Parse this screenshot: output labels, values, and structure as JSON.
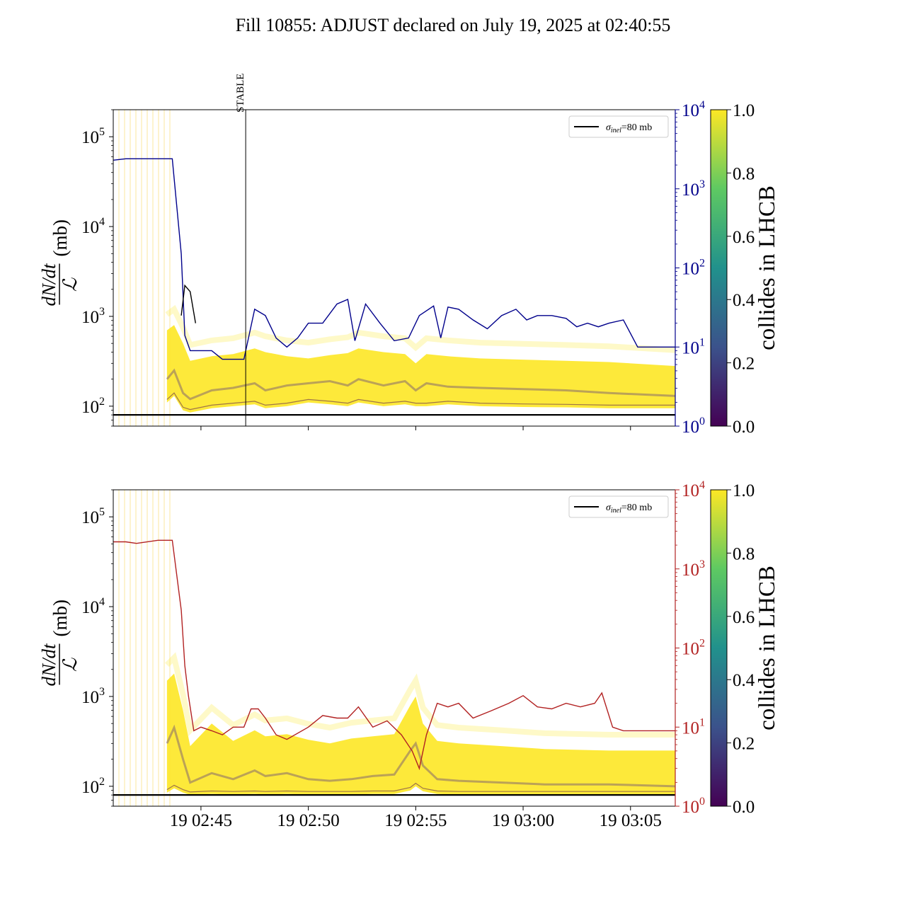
{
  "title": "Fill 10855: ADJUST declared on July 19, 2025 at 02:40:55",
  "colors": {
    "top_line": "#00008b",
    "bottom_line": "#b22222",
    "reference": "#000000",
    "viridis_low": "#440154",
    "viridis_high": "#fde725"
  },
  "chart_data": [
    {
      "type": "line",
      "panel": "top",
      "ylabel": "dN/dt / L (mb)",
      "ylabel_parts": {
        "numerator": "dN/dt",
        "denominator": "ℒ",
        "unit": "(mb)"
      },
      "yscale": "log",
      "ylim": [
        60,
        200000
      ],
      "y_ticks": [
        {
          "base": "10",
          "exp": "2"
        },
        {
          "base": "10",
          "exp": "3"
        },
        {
          "base": "10",
          "exp": "4"
        },
        {
          "base": "10",
          "exp": "5"
        }
      ],
      "y2_scale": "log",
      "y2_lim": [
        1,
        10000
      ],
      "y2_ticks": [
        {
          "base": "10",
          "exp": "0"
        },
        {
          "base": "10",
          "exp": "1"
        },
        {
          "base": "10",
          "exp": "2"
        },
        {
          "base": "10",
          "exp": "3"
        },
        {
          "base": "10",
          "exp": "4"
        }
      ],
      "y2_color": "#00008b",
      "x_range_minutes": [
        "02:40:55",
        "03:07:05"
      ],
      "x_ticks": [],
      "reference_line": {
        "value": 80,
        "legend": "σinel=80 mb",
        "legend_symbol": "σ",
        "legend_sub": "inel",
        "legend_rest": "=80 mb"
      },
      "legend_position": "upper right",
      "annotation": {
        "text": "STABLE",
        "x": "02:47:05"
      },
      "colorbar": {
        "label": "collides in LHCB",
        "ticks": [
          "0.0",
          "0.2",
          "0.4",
          "0.6",
          "0.8",
          "1.0"
        ],
        "range": [
          0.0,
          1.0
        ]
      },
      "band": {
        "x": [
          "02:43:25",
          "02:43:45",
          "02:44:10",
          "02:44:30",
          "02:45:30",
          "02:46:30",
          "02:47:30",
          "02:48:00",
          "02:49:00",
          "02:50:00",
          "02:51:00",
          "02:51:50",
          "02:52:20",
          "02:53:30",
          "02:54:30",
          "02:55:00",
          "02:55:30",
          "02:56:30",
          "02:58:00",
          "03:00:00",
          "03:02:00",
          "03:04:00",
          "03:07:05"
        ],
        "upper": [
          700,
          800,
          500,
          320,
          360,
          380,
          440,
          400,
          360,
          340,
          370,
          390,
          440,
          400,
          380,
          300,
          380,
          360,
          340,
          330,
          320,
          310,
          280
        ],
        "mid": [
          200,
          250,
          140,
          120,
          150,
          160,
          180,
          150,
          170,
          180,
          190,
          170,
          200,
          170,
          190,
          150,
          180,
          165,
          160,
          155,
          150,
          140,
          130
        ],
        "lower": [
          110,
          130,
          90,
          85,
          95,
          100,
          105,
          95,
          100,
          110,
          105,
          100,
          110,
          100,
          105,
          100,
          100,
          105,
          100,
          98,
          97,
          95,
          95
        ]
      },
      "series": [
        {
          "color": "#00008b",
          "axis": "right",
          "x": [
            "02:40:55",
            "02:41:30",
            "02:42:00",
            "02:43:00",
            "02:43:40",
            "02:44:05",
            "02:44:15",
            "02:44:30",
            "02:45:00",
            "02:45:30",
            "02:46:00",
            "02:46:30",
            "02:47:00",
            "02:47:30",
            "02:48:00",
            "02:48:30",
            "02:49:00",
            "02:49:30",
            "02:50:00",
            "02:50:40",
            "02:51:20",
            "02:51:50",
            "02:52:10",
            "02:52:40",
            "02:53:20",
            "02:54:00",
            "02:54:40",
            "02:55:10",
            "02:55:50",
            "02:56:10",
            "02:56:30",
            "02:57:00",
            "02:57:40",
            "02:58:20",
            "02:59:00",
            "02:59:40",
            "03:00:10",
            "03:00:40",
            "03:01:20",
            "03:02:00",
            "03:02:30",
            "03:03:00",
            "03:03:30",
            "03:04:00",
            "03:04:40",
            "03:05:20",
            "03:06:00",
            "03:07:05"
          ],
          "y": [
            2300,
            2400,
            2400,
            2400,
            2400,
            150,
            14,
            9,
            9,
            9,
            7,
            7,
            7,
            30,
            25,
            13,
            10,
            13,
            20,
            20,
            35,
            40,
            12,
            35,
            20,
            12,
            13,
            25,
            33,
            13,
            32,
            30,
            22,
            17,
            25,
            30,
            22,
            25,
            25,
            23,
            18,
            20,
            18,
            20,
            22,
            10,
            10,
            10
          ]
        },
        {
          "color": "#000000",
          "axis": "right",
          "x": [
            "02:44:05",
            "02:44:15",
            "02:44:30",
            "02:44:45"
          ],
          "y": [
            25,
            60,
            50,
            20
          ]
        }
      ]
    },
    {
      "type": "line",
      "panel": "bottom",
      "ylabel": "dN/dt / L (mb)",
      "ylabel_parts": {
        "numerator": "dN/dt",
        "denominator": "ℒ",
        "unit": "(mb)"
      },
      "yscale": "log",
      "ylim": [
        60,
        200000
      ],
      "y_ticks": [
        {
          "base": "10",
          "exp": "2"
        },
        {
          "base": "10",
          "exp": "3"
        },
        {
          "base": "10",
          "exp": "4"
        },
        {
          "base": "10",
          "exp": "5"
        }
      ],
      "y2_scale": "log",
      "y2_lim": [
        1,
        10000
      ],
      "y2_ticks": [
        {
          "base": "10",
          "exp": "0"
        },
        {
          "base": "10",
          "exp": "1"
        },
        {
          "base": "10",
          "exp": "2"
        },
        {
          "base": "10",
          "exp": "3"
        },
        {
          "base": "10",
          "exp": "4"
        }
      ],
      "y2_color": "#b22222",
      "x_range_minutes": [
        "02:40:55",
        "03:07:05"
      ],
      "x_ticks": [
        "19 02:45",
        "19 02:50",
        "19 02:55",
        "19 03:00",
        "19 03:05"
      ],
      "reference_line": {
        "value": 80,
        "legend": "σinel=80 mb",
        "legend_symbol": "σ",
        "legend_sub": "inel",
        "legend_rest": "=80 mb"
      },
      "legend_position": "upper right",
      "colorbar": {
        "label": "collides in LHCB",
        "ticks": [
          "0.0",
          "0.2",
          "0.4",
          "0.6",
          "0.8",
          "1.0"
        ],
        "range": [
          0.0,
          1.0
        ]
      },
      "band": {
        "x": [
          "02:43:25",
          "02:43:45",
          "02:44:10",
          "02:44:30",
          "02:45:30",
          "02:46:30",
          "02:47:30",
          "02:48:00",
          "02:49:00",
          "02:50:00",
          "02:51:00",
          "02:52:00",
          "02:53:00",
          "02:54:00",
          "02:54:45",
          "02:55:00",
          "02:55:20",
          "02:56:00",
          "02:57:00",
          "02:59:00",
          "03:01:00",
          "03:04:00",
          "03:07:05"
        ],
        "upper": [
          1500,
          1800,
          700,
          280,
          500,
          320,
          420,
          360,
          380,
          330,
          300,
          340,
          360,
          380,
          800,
          1000,
          500,
          320,
          300,
          280,
          260,
          250,
          250
        ],
        "mid": [
          300,
          450,
          200,
          110,
          140,
          120,
          150,
          130,
          140,
          120,
          115,
          120,
          130,
          135,
          250,
          300,
          170,
          120,
          115,
          110,
          105,
          105,
          100
        ],
        "lower": [
          85,
          95,
          85,
          80,
          82,
          81,
          82,
          81,
          82,
          81,
          81,
          81,
          82,
          82,
          90,
          100,
          88,
          82,
          81,
          81,
          81,
          81,
          81
        ]
      },
      "series": [
        {
          "color": "#b22222",
          "axis": "right",
          "x": [
            "02:40:55",
            "02:41:30",
            "02:42:00",
            "02:43:00",
            "02:43:40",
            "02:44:05",
            "02:44:15",
            "02:44:25",
            "02:44:40",
            "02:45:00",
            "02:45:30",
            "02:46:00",
            "02:46:30",
            "02:47:00",
            "02:47:20",
            "02:47:40",
            "02:48:00",
            "02:48:30",
            "02:49:00",
            "02:50:00",
            "02:50:40",
            "02:51:20",
            "02:51:50",
            "02:52:20",
            "02:53:00",
            "02:53:40",
            "02:54:20",
            "02:54:50",
            "02:55:10",
            "02:55:30",
            "02:56:00",
            "02:56:30",
            "02:57:00",
            "02:57:40",
            "02:58:30",
            "02:59:20",
            "03:00:00",
            "03:00:40",
            "03:01:20",
            "03:02:00",
            "03:02:40",
            "03:03:20",
            "03:03:40",
            "03:04:10",
            "03:04:40",
            "03:05:20",
            "03:06:00",
            "03:07:05"
          ],
          "y": [
            2200,
            2200,
            2100,
            2300,
            2300,
            300,
            60,
            25,
            9,
            10,
            9,
            8,
            10,
            10,
            17,
            17,
            13,
            8,
            7,
            10,
            14,
            13,
            13,
            18,
            10,
            12,
            8,
            5,
            3,
            8,
            20,
            18,
            20,
            13,
            16,
            20,
            25,
            18,
            17,
            20,
            18,
            20,
            27,
            10,
            9,
            9,
            9,
            9
          ]
        }
      ]
    }
  ]
}
